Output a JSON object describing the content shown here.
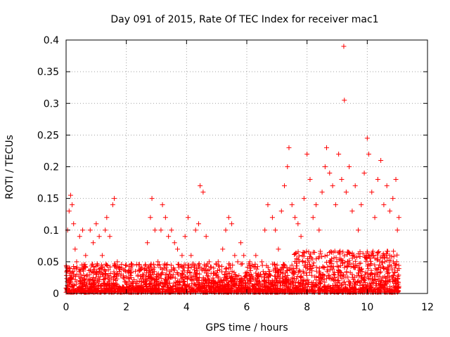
{
  "chart_data": {
    "type": "scatter",
    "title": "Day 091 of 2015, Rate Of TEC Index for receiver mac1",
    "xlabel": "GPS time / hours",
    "ylabel": "ROTI / TECUs",
    "xlim": [
      0,
      12
    ],
    "ylim": [
      0,
      0.4
    ],
    "xticks": [
      "0",
      "2",
      "4",
      "6",
      "8",
      "10",
      "12"
    ],
    "yticks": [
      "0",
      "0.05",
      "0.1",
      "0.15",
      "0.2",
      "0.25",
      "0.3",
      "0.35",
      "0.4"
    ],
    "grid": true,
    "marker": "+",
    "color": "#ff0000",
    "series": [
      {
        "name": "ROTI",
        "points": [
          [
            0.05,
            0.1
          ],
          [
            0.1,
            0.13
          ],
          [
            0.15,
            0.155
          ],
          [
            0.2,
            0.14
          ],
          [
            0.25,
            0.11
          ],
          [
            0.3,
            0.07
          ],
          [
            0.35,
            0.05
          ],
          [
            0.45,
            0.09
          ],
          [
            0.55,
            0.1
          ],
          [
            0.65,
            0.06
          ],
          [
            0.8,
            0.1
          ],
          [
            0.9,
            0.08
          ],
          [
            1.0,
            0.11
          ],
          [
            1.1,
            0.09
          ],
          [
            1.2,
            0.06
          ],
          [
            1.3,
            0.1
          ],
          [
            1.35,
            0.12
          ],
          [
            1.45,
            0.09
          ],
          [
            1.55,
            0.14
          ],
          [
            1.6,
            0.15
          ],
          [
            1.7,
            0.05
          ],
          [
            1.85,
            0.04
          ],
          [
            2.0,
            0.045
          ],
          [
            2.15,
            0.04
          ],
          [
            2.3,
            0.035
          ],
          [
            2.5,
            0.04
          ],
          [
            2.7,
            0.08
          ],
          [
            2.8,
            0.12
          ],
          [
            2.85,
            0.15
          ],
          [
            2.95,
            0.1
          ],
          [
            3.05,
            0.05
          ],
          [
            3.15,
            0.1
          ],
          [
            3.2,
            0.14
          ],
          [
            3.3,
            0.12
          ],
          [
            3.4,
            0.09
          ],
          [
            3.5,
            0.1
          ],
          [
            3.6,
            0.08
          ],
          [
            3.7,
            0.07
          ],
          [
            3.85,
            0.06
          ],
          [
            3.95,
            0.09
          ],
          [
            4.05,
            0.12
          ],
          [
            4.15,
            0.06
          ],
          [
            4.3,
            0.1
          ],
          [
            4.4,
            0.11
          ],
          [
            4.45,
            0.17
          ],
          [
            4.55,
            0.16
          ],
          [
            4.65,
            0.09
          ],
          [
            4.75,
            0.05
          ],
          [
            4.9,
            0.04
          ],
          [
            5.05,
            0.05
          ],
          [
            5.2,
            0.07
          ],
          [
            5.3,
            0.1
          ],
          [
            5.4,
            0.12
          ],
          [
            5.5,
            0.11
          ],
          [
            5.6,
            0.06
          ],
          [
            5.7,
            0.05
          ],
          [
            5.8,
            0.08
          ],
          [
            5.9,
            0.06
          ],
          [
            6.1,
            0.05
          ],
          [
            6.3,
            0.06
          ],
          [
            6.5,
            0.05
          ],
          [
            6.6,
            0.1
          ],
          [
            6.7,
            0.14
          ],
          [
            6.85,
            0.12
          ],
          [
            6.95,
            0.1
          ],
          [
            7.05,
            0.07
          ],
          [
            7.15,
            0.13
          ],
          [
            7.25,
            0.17
          ],
          [
            7.35,
            0.2
          ],
          [
            7.4,
            0.23
          ],
          [
            7.5,
            0.14
          ],
          [
            7.6,
            0.12
          ],
          [
            7.7,
            0.11
          ],
          [
            7.8,
            0.09
          ],
          [
            7.9,
            0.15
          ],
          [
            8.0,
            0.22
          ],
          [
            8.1,
            0.18
          ],
          [
            8.2,
            0.12
          ],
          [
            8.3,
            0.14
          ],
          [
            8.4,
            0.1
          ],
          [
            8.5,
            0.16
          ],
          [
            8.6,
            0.2
          ],
          [
            8.65,
            0.23
          ],
          [
            8.75,
            0.19
          ],
          [
            8.85,
            0.17
          ],
          [
            8.95,
            0.14
          ],
          [
            9.05,
            0.22
          ],
          [
            9.15,
            0.18
          ],
          [
            9.22,
            0.39
          ],
          [
            9.24,
            0.305
          ],
          [
            9.3,
            0.16
          ],
          [
            9.4,
            0.2
          ],
          [
            9.5,
            0.13
          ],
          [
            9.6,
            0.17
          ],
          [
            9.7,
            0.1
          ],
          [
            9.8,
            0.14
          ],
          [
            9.9,
            0.19
          ],
          [
            10.0,
            0.245
          ],
          [
            10.05,
            0.22
          ],
          [
            10.15,
            0.16
          ],
          [
            10.25,
            0.12
          ],
          [
            10.35,
            0.18
          ],
          [
            10.45,
            0.21
          ],
          [
            10.55,
            0.14
          ],
          [
            10.65,
            0.17
          ],
          [
            10.75,
            0.13
          ],
          [
            10.85,
            0.15
          ],
          [
            10.95,
            0.18
          ],
          [
            11.0,
            0.1
          ],
          [
            11.05,
            0.12
          ]
        ]
      }
    ]
  }
}
